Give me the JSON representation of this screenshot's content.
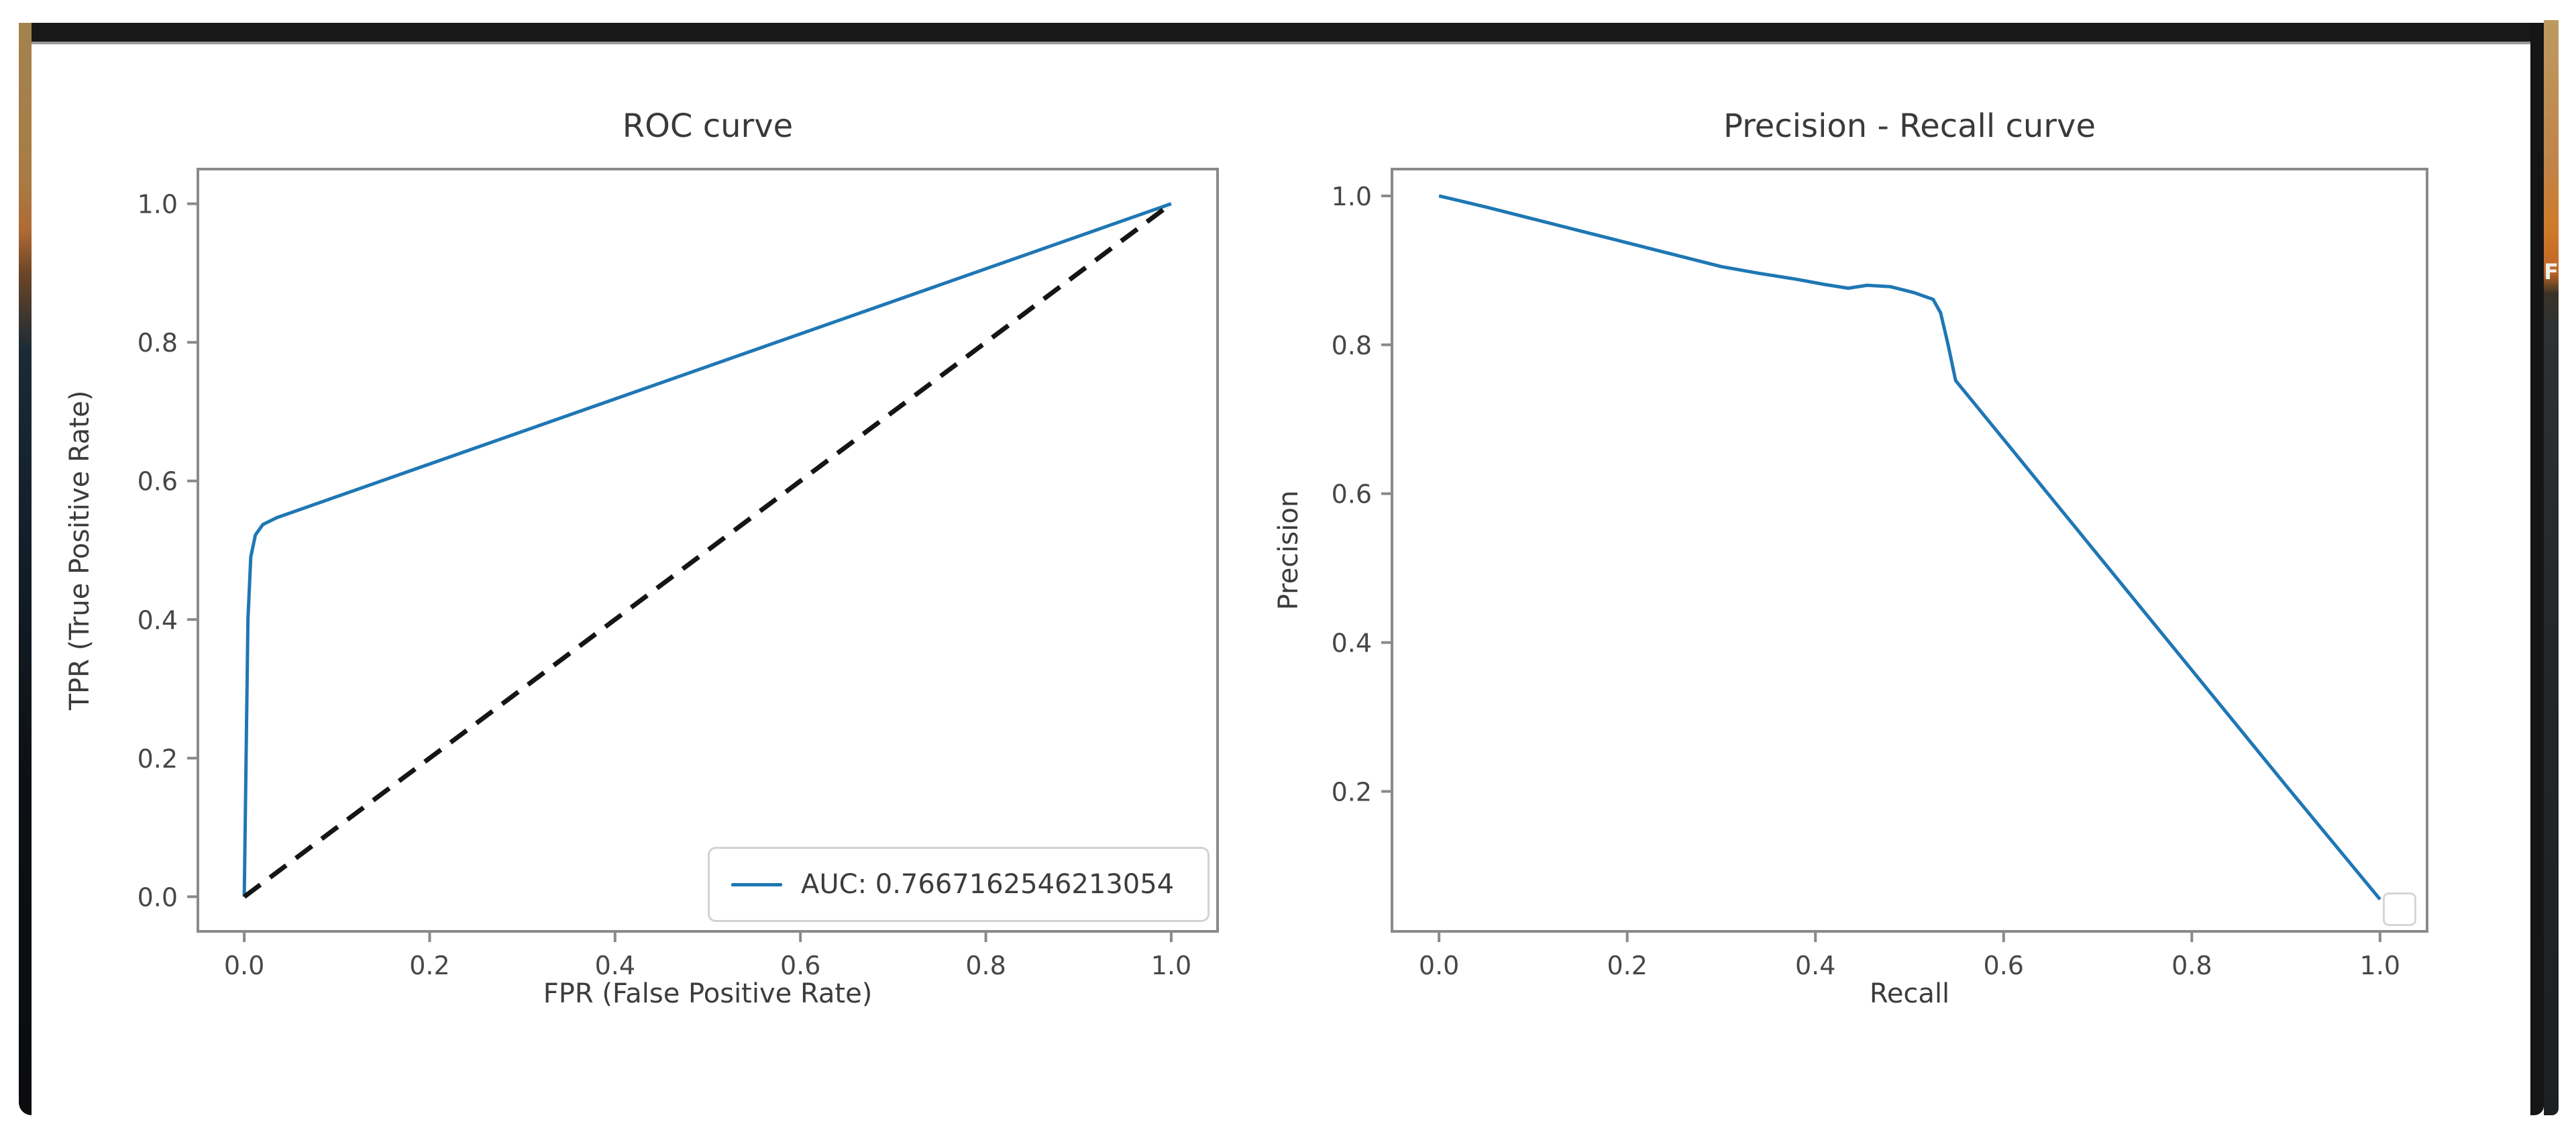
{
  "frame": {
    "glyph": "F",
    "top_bar_color": "#181818",
    "side_color": "#151515",
    "wallpaper_top_color": "#cf7a2a"
  },
  "accent_color": "#1f77b4",
  "chart_data": [
    {
      "type": "line",
      "title": "ROC curve",
      "xlabel": "FPR (False Positive Rate)",
      "ylabel": "TPR (True Positive Rate)",
      "xlim": [
        -0.05,
        1.05
      ],
      "ylim": [
        -0.05,
        1.05
      ],
      "xticks": [
        0.0,
        0.2,
        0.4,
        0.6,
        0.8,
        1.0
      ],
      "yticks": [
        0.0,
        0.2,
        0.4,
        0.6,
        0.8,
        1.0
      ],
      "grid": false,
      "legend": {
        "label": "AUC: 0.7667162546213054",
        "position": "lower right"
      },
      "series": [
        {
          "name": "roc",
          "color": "#1f77b4",
          "style": "solid",
          "points": [
            [
              0.0,
              0.0
            ],
            [
              0.004,
              0.4
            ],
            [
              0.007,
              0.49
            ],
            [
              0.012,
              0.522
            ],
            [
              0.02,
              0.537
            ],
            [
              0.035,
              0.547
            ],
            [
              1.0,
              1.0
            ]
          ]
        },
        {
          "name": "chance-diagonal",
          "color": "#151515",
          "style": "dashed",
          "points": [
            [
              0.0,
              0.0
            ],
            [
              1.0,
              1.0
            ]
          ]
        }
      ]
    },
    {
      "type": "line",
      "title": "Precision - Recall curve",
      "xlabel": "Recall",
      "ylabel": "Precision",
      "xlim": [
        -0.05,
        1.05
      ],
      "ylim": [
        0.012,
        1.036
      ],
      "xticks": [
        0.0,
        0.2,
        0.4,
        0.6,
        0.8,
        1.0
      ],
      "yticks": [
        0.2,
        0.4,
        0.6,
        0.8,
        1.0
      ],
      "grid": false,
      "legend": {
        "label": "",
        "position": "lower right",
        "empty": true
      },
      "series": [
        {
          "name": "precision-recall",
          "color": "#1f77b4",
          "style": "solid",
          "points": [
            [
              0.0,
              1.0
            ],
            [
              0.05,
              0.985
            ],
            [
              0.1,
              0.969
            ],
            [
              0.15,
              0.953
            ],
            [
              0.2,
              0.937
            ],
            [
              0.25,
              0.921
            ],
            [
              0.3,
              0.905
            ],
            [
              0.34,
              0.896
            ],
            [
              0.38,
              0.888
            ],
            [
              0.41,
              0.881
            ],
            [
              0.435,
              0.876
            ],
            [
              0.455,
              0.88
            ],
            [
              0.48,
              0.878
            ],
            [
              0.505,
              0.87
            ],
            [
              0.525,
              0.861
            ],
            [
              0.533,
              0.843
            ],
            [
              0.541,
              0.8
            ],
            [
              0.549,
              0.752
            ],
            [
              0.6,
              0.673
            ],
            [
              0.7,
              0.518
            ],
            [
              0.8,
              0.363
            ],
            [
              0.9,
              0.208
            ],
            [
              1.0,
              0.055
            ]
          ]
        }
      ]
    }
  ]
}
